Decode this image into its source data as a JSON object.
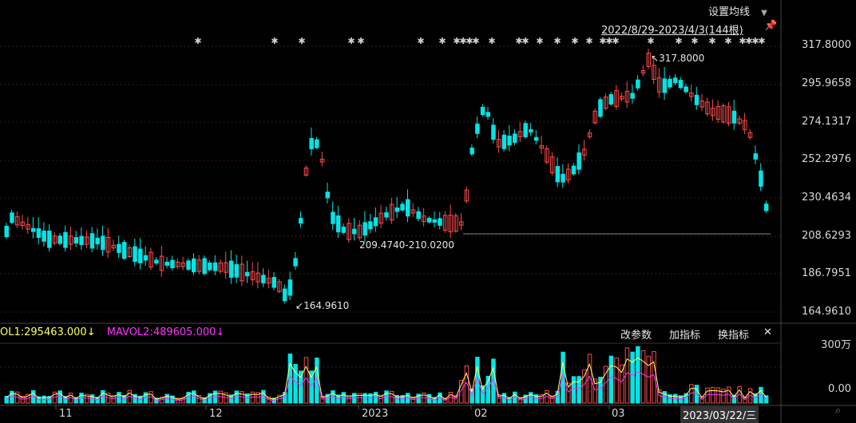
{
  "toolbar": {
    "ma_settings": "设置均线",
    "date_range": "2022/8/29-2023/4/3(144根)"
  },
  "price_axis": [
    "317.8000",
    "295.9658",
    "274.1317",
    "252.2976",
    "230.4634",
    "208.6293",
    "186.7951",
    "164.9610"
  ],
  "annotations": {
    "high": "317.8000",
    "low": "164.9610",
    "range": "209.4740-210.0200"
  },
  "volume": {
    "legend_vol1": "OL1:295463.000",
    "legend_mavol2": "MAVOL2:489605.000",
    "axis_top": "300万",
    "axis_bottom": "0.00",
    "buttons": {
      "params": "改参数",
      "add": "加指标",
      "switch": "换指标",
      "close": "✕"
    }
  },
  "x_axis": [
    "11",
    "12",
    "2023",
    "02",
    "03"
  ],
  "cursor_date": "2023/03/22/三",
  "colors": {
    "up": "#ff4a4a",
    "down": "#00e5e5",
    "ma1": "#ffff66",
    "ma2": "#ff33ff",
    "grid": "#3a1a1a"
  }
}
